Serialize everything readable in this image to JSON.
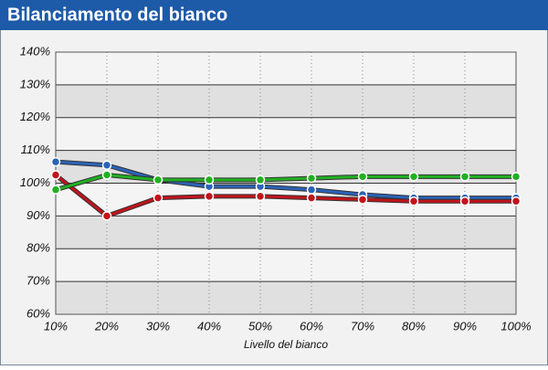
{
  "chart_data": {
    "type": "line",
    "title": "Bilanciamento del bianco",
    "x_label": "Livello del bianco",
    "x": [
      10,
      20,
      30,
      40,
      50,
      60,
      70,
      80,
      90,
      100
    ],
    "series": [
      {
        "name": "Blu",
        "color": "#2a63b8",
        "values": [
          106.5,
          105.5,
          101,
          99,
          99,
          98,
          96.5,
          95.5,
          95.5,
          95.5
        ]
      },
      {
        "name": "Rosso",
        "color": "#c0141c",
        "values": [
          102.5,
          90,
          95.5,
          96,
          96,
          95.5,
          95,
          94.5,
          94.5,
          94.5
        ]
      },
      {
        "name": "Verde",
        "color": "#22b022",
        "values": [
          98,
          102.5,
          101,
          101,
          101,
          101.5,
          102,
          102,
          102,
          102
        ]
      }
    ],
    "xlim": [
      10,
      100
    ],
    "xticks": [
      {
        "value": 10,
        "label": "10%"
      },
      {
        "value": 20,
        "label": "20%"
      },
      {
        "value": 30,
        "label": "30%"
      },
      {
        "value": 40,
        "label": "40%"
      },
      {
        "value": 50,
        "label": "50%"
      },
      {
        "value": 60,
        "label": "60%"
      },
      {
        "value": 70,
        "label": "70%"
      },
      {
        "value": 80,
        "label": "80%"
      },
      {
        "value": 90,
        "label": "90%"
      },
      {
        "value": 100,
        "label": "100%"
      }
    ],
    "ylim": [
      60,
      140
    ],
    "yticks": [
      {
        "value": 60,
        "label": "60%"
      },
      {
        "value": 70,
        "label": "70%"
      },
      {
        "value": 80,
        "label": "80%"
      },
      {
        "value": 90,
        "label": "90%"
      },
      {
        "value": 100,
        "label": "100%"
      },
      {
        "value": 110,
        "label": "110%"
      },
      {
        "value": 120,
        "label": "120%"
      },
      {
        "value": 130,
        "label": "130%"
      },
      {
        "value": 140,
        "label": "140%"
      }
    ],
    "grid": true
  }
}
